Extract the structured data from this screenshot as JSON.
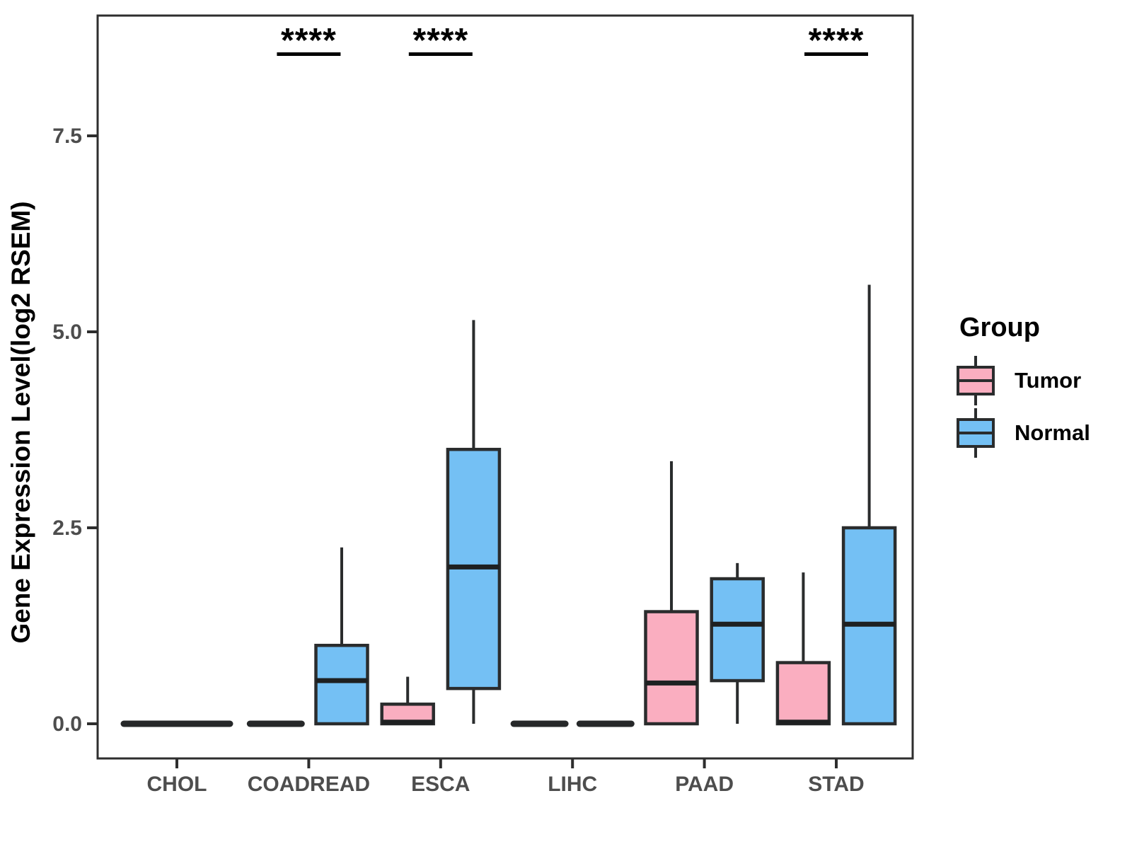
{
  "chart_data": {
    "type": "boxplot",
    "title": "",
    "xlabel": "",
    "ylabel": "Gene Expression Level(log2 RSEM)",
    "categories": [
      "CHOL",
      "COADREAD",
      "ESCA",
      "LIHC",
      "PAAD",
      "STAD"
    ],
    "yticks": [
      {
        "label": "0.0",
        "value": 0.0
      },
      {
        "label": "2.5",
        "value": 2.5
      },
      {
        "label": "5.0",
        "value": 5.0
      },
      {
        "label": "7.5",
        "value": 7.5
      }
    ],
    "ylim": [
      -0.45,
      9.0
    ],
    "grid": false,
    "legend": {
      "title": "Group",
      "position": "right",
      "entries": [
        {
          "name": "Tumor",
          "color": "#FAAEC0"
        },
        {
          "name": "Normal",
          "color": "#74C0F4"
        }
      ]
    },
    "colors": {
      "box_border": "#2A2C2D",
      "median_line": "#1E2021",
      "whisker": "#2A2C2D",
      "flat_line": "#262829",
      "axis_text": "#4D4D4D",
      "axis_title": "#000000",
      "panel_border": "#2E2E2E",
      "significance": "#000000"
    },
    "significance_markers": [
      {
        "category": "COADREAD",
        "label": "****"
      },
      {
        "category": "ESCA",
        "label": "****"
      },
      {
        "category": "STAD",
        "label": "****"
      }
    ],
    "series": [
      {
        "name": "Tumor",
        "color": "#FAAEC0",
        "boxes": [
          {
            "category": "CHOL",
            "min": 0,
            "q1": 0,
            "median": 0,
            "q3": 0,
            "max": 0,
            "flat": true,
            "wide": true
          },
          {
            "category": "COADREAD",
            "min": 0,
            "q1": 0,
            "median": 0,
            "q3": 0,
            "max": 0,
            "flat": true
          },
          {
            "category": "ESCA",
            "min": 0,
            "q1": 0,
            "median": 0.02,
            "q3": 0.25,
            "max": 0.6
          },
          {
            "category": "LIHC",
            "min": 0,
            "q1": 0,
            "median": 0,
            "q3": 0,
            "max": 0,
            "flat": true
          },
          {
            "category": "PAAD",
            "min": 0,
            "q1": 0,
            "median": 0.52,
            "q3": 1.43,
            "max": 3.35
          },
          {
            "category": "STAD",
            "min": 0,
            "q1": 0,
            "median": 0.02,
            "q3": 0.78,
            "max": 1.93
          }
        ]
      },
      {
        "name": "Normal",
        "color": "#74C0F4",
        "boxes": [
          {
            "category": "CHOL",
            "absent": true
          },
          {
            "category": "COADREAD",
            "min": 0,
            "q1": 0,
            "median": 0.55,
            "q3": 1.0,
            "max": 2.25
          },
          {
            "category": "ESCA",
            "min": 0,
            "q1": 0.45,
            "median": 2.0,
            "q3": 3.5,
            "max": 5.15
          },
          {
            "category": "LIHC",
            "min": 0,
            "q1": 0,
            "median": 0,
            "q3": 0,
            "max": 0,
            "flat": true
          },
          {
            "category": "PAAD",
            "min": 0,
            "q1": 0.55,
            "median": 1.27,
            "q3": 1.85,
            "max": 2.05
          },
          {
            "category": "STAD",
            "min": 0,
            "q1": 0,
            "median": 1.27,
            "q3": 2.5,
            "max": 5.6
          }
        ]
      }
    ]
  }
}
